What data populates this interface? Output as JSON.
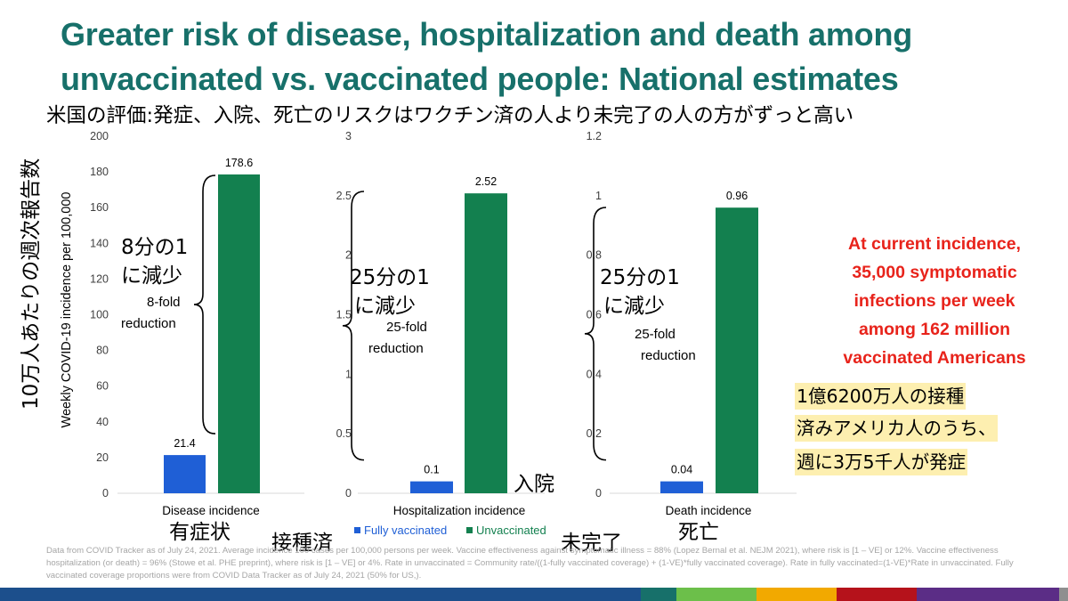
{
  "title": "Greater risk of disease, hospitalization and death among unvaccinated vs. vaccinated people: National estimates",
  "subtitle_jp": "米国の評価:発症、入院、死亡のリスクはワクチン済の人より未完了の人の方がずっと高い",
  "ylabel_jp": "10万人あたりの週次報告数",
  "ylabel": "Weekly COVID-19 incidence per 100,000",
  "colors": {
    "fully_vaccinated": "#1f5fd6",
    "unvaccinated": "#13804f",
    "title": "#17706a",
    "red": "#e8231b"
  },
  "chart_data": [
    {
      "type": "bar",
      "categories": [
        "Disease incidence"
      ],
      "series": [
        {
          "name": "Fully vaccinated",
          "values": [
            21.4
          ]
        },
        {
          "name": "Unvaccinated",
          "values": [
            178.6
          ]
        }
      ],
      "ylim": [
        0,
        200
      ],
      "yticks": [
        "0",
        "20",
        "40",
        "60",
        "80",
        "100",
        "120",
        "140",
        "160",
        "180",
        "200"
      ],
      "data_labels": [
        "21.4",
        "178.6"
      ],
      "annotation": "8-fold reduction",
      "annotation_jp": "8分の1に減少",
      "category_jp": "有症状"
    },
    {
      "type": "bar",
      "categories": [
        "Hospitalization incidence"
      ],
      "series": [
        {
          "name": "Fully vaccinated",
          "values": [
            0.1
          ]
        },
        {
          "name": "Unvaccinated",
          "values": [
            2.52
          ]
        }
      ],
      "ylim": [
        0,
        3
      ],
      "yticks": [
        "0",
        "0.5",
        "1",
        "1.5",
        "2",
        "2.5",
        "3"
      ],
      "data_labels": [
        "0.1",
        "2.52"
      ],
      "annotation": "25-fold reduction",
      "annotation_jp": "25分の1に減少",
      "category_jp": "入院"
    },
    {
      "type": "bar",
      "categories": [
        "Death incidence"
      ],
      "series": [
        {
          "name": "Fully vaccinated",
          "values": [
            0.04
          ]
        },
        {
          "name": "Unvaccinated",
          "values": [
            0.96
          ]
        }
      ],
      "ylim": [
        0,
        1.2
      ],
      "yticks": [
        "0",
        "0.2",
        "0.4",
        "0.6",
        "0.8",
        "1",
        "1.2"
      ],
      "data_labels": [
        "0.04",
        "0.96"
      ],
      "annotation": "25-fold reduction",
      "annotation_jp": "25分の1に減少",
      "category_jp": "死亡"
    }
  ],
  "legend": {
    "fully_vaccinated": "Fully vaccinated",
    "unvaccinated": "Unvaccinated",
    "fully_vaccinated_jp": "接種済",
    "unvaccinated_jp": "未完了",
    "placement": "bottom-center"
  },
  "callout": {
    "lines": [
      "At current incidence,",
      "35,000 symptomatic",
      "infections per week",
      "among 162 million",
      "vaccinated Americans"
    ],
    "jp_lines": [
      "1億6200万人の接種",
      "済みアメリカ人のうち、",
      "週に3万5千人が発症"
    ]
  },
  "annotation_jp_parts": {
    "disease": [
      "8分の1",
      "に減少"
    ],
    "hosp": [
      "25分の1",
      "に減少"
    ],
    "death": [
      "25分の1",
      "に減少"
    ]
  },
  "fold_parts": {
    "disease": [
      "8-fold",
      "reduction"
    ],
    "hosp": [
      "25-fold",
      "reduction"
    ],
    "death": [
      "25-fold",
      "reduction"
    ]
  },
  "footnote": "Data from COVID Tracker as of July 24, 2021. Average incidence 100 cases per 100,000 persons per week. Vaccine effectiveness against symptomatic illness = 88% (Lopez Bernal et al. NEJM 2021), where risk is [1 – VE] or 12%. Vaccine effectiveness hospitalization (or death) = 96% (Stowe et al. PHE preprint), where risk is [1 – VE] or 4%. Rate in unvaccinated = Community rate/((1-fully vaccinated coverage) + (1-VE)*fully vaccinated coverage). Rate in fully vaccinated=(1-VE)*Rate in unvaccinated. Fully vaccinated coverage proportions were from COVID Data Tracker as of July 24, 2021 (50% for US,).",
  "footer_colors": [
    "#1c4f8c",
    "#3aa0d8",
    "#17706a",
    "#6cbf4a",
    "#f2a900",
    "#b5121b",
    "#5b2d86",
    "#8f8f8f"
  ]
}
